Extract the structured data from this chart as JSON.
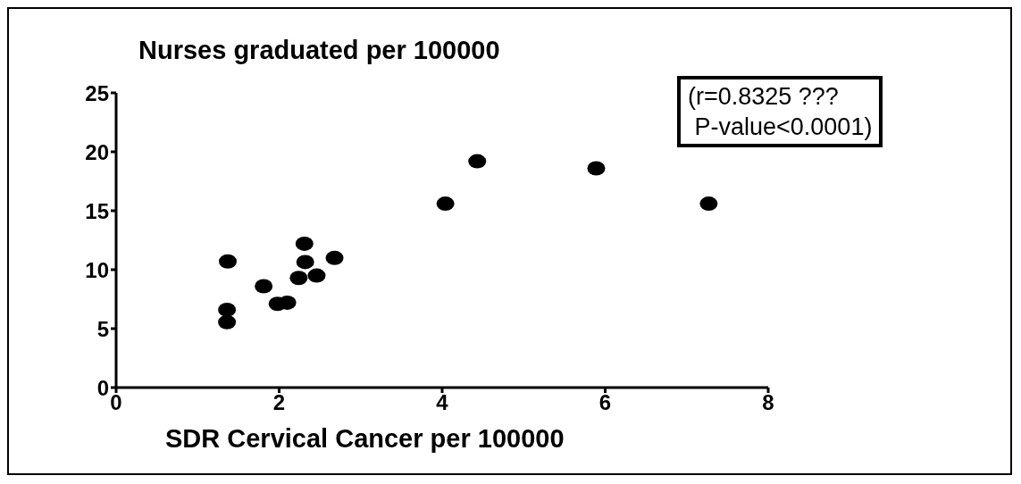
{
  "chart_data": {
    "type": "scatter",
    "title": "Nurses graduated per 100000",
    "xlabel": "SDR Cervical Cancer per 100000",
    "annotations": [
      "(r=0.8325 ???\n P-value<0.0001)"
    ],
    "x": [
      1.36,
      1.36,
      1.37,
      1.81,
      1.98,
      2.1,
      2.24,
      2.31,
      2.32,
      2.46,
      2.68,
      4.04,
      4.43,
      5.89,
      7.27
    ],
    "values": [
      5.55,
      6.6,
      10.7,
      8.6,
      7.1,
      7.2,
      9.3,
      12.2,
      10.65,
      9.5,
      11.0,
      15.6,
      19.2,
      18.6,
      15.6
    ],
    "color": "#000000",
    "marker": "circle",
    "xlim": [
      0,
      8
    ],
    "xticks": [
      0,
      2,
      4,
      6,
      8
    ],
    "ylim": [
      0,
      25
    ],
    "yticks": [
      0,
      5,
      10,
      15,
      20,
      25
    ],
    "grid": false
  }
}
